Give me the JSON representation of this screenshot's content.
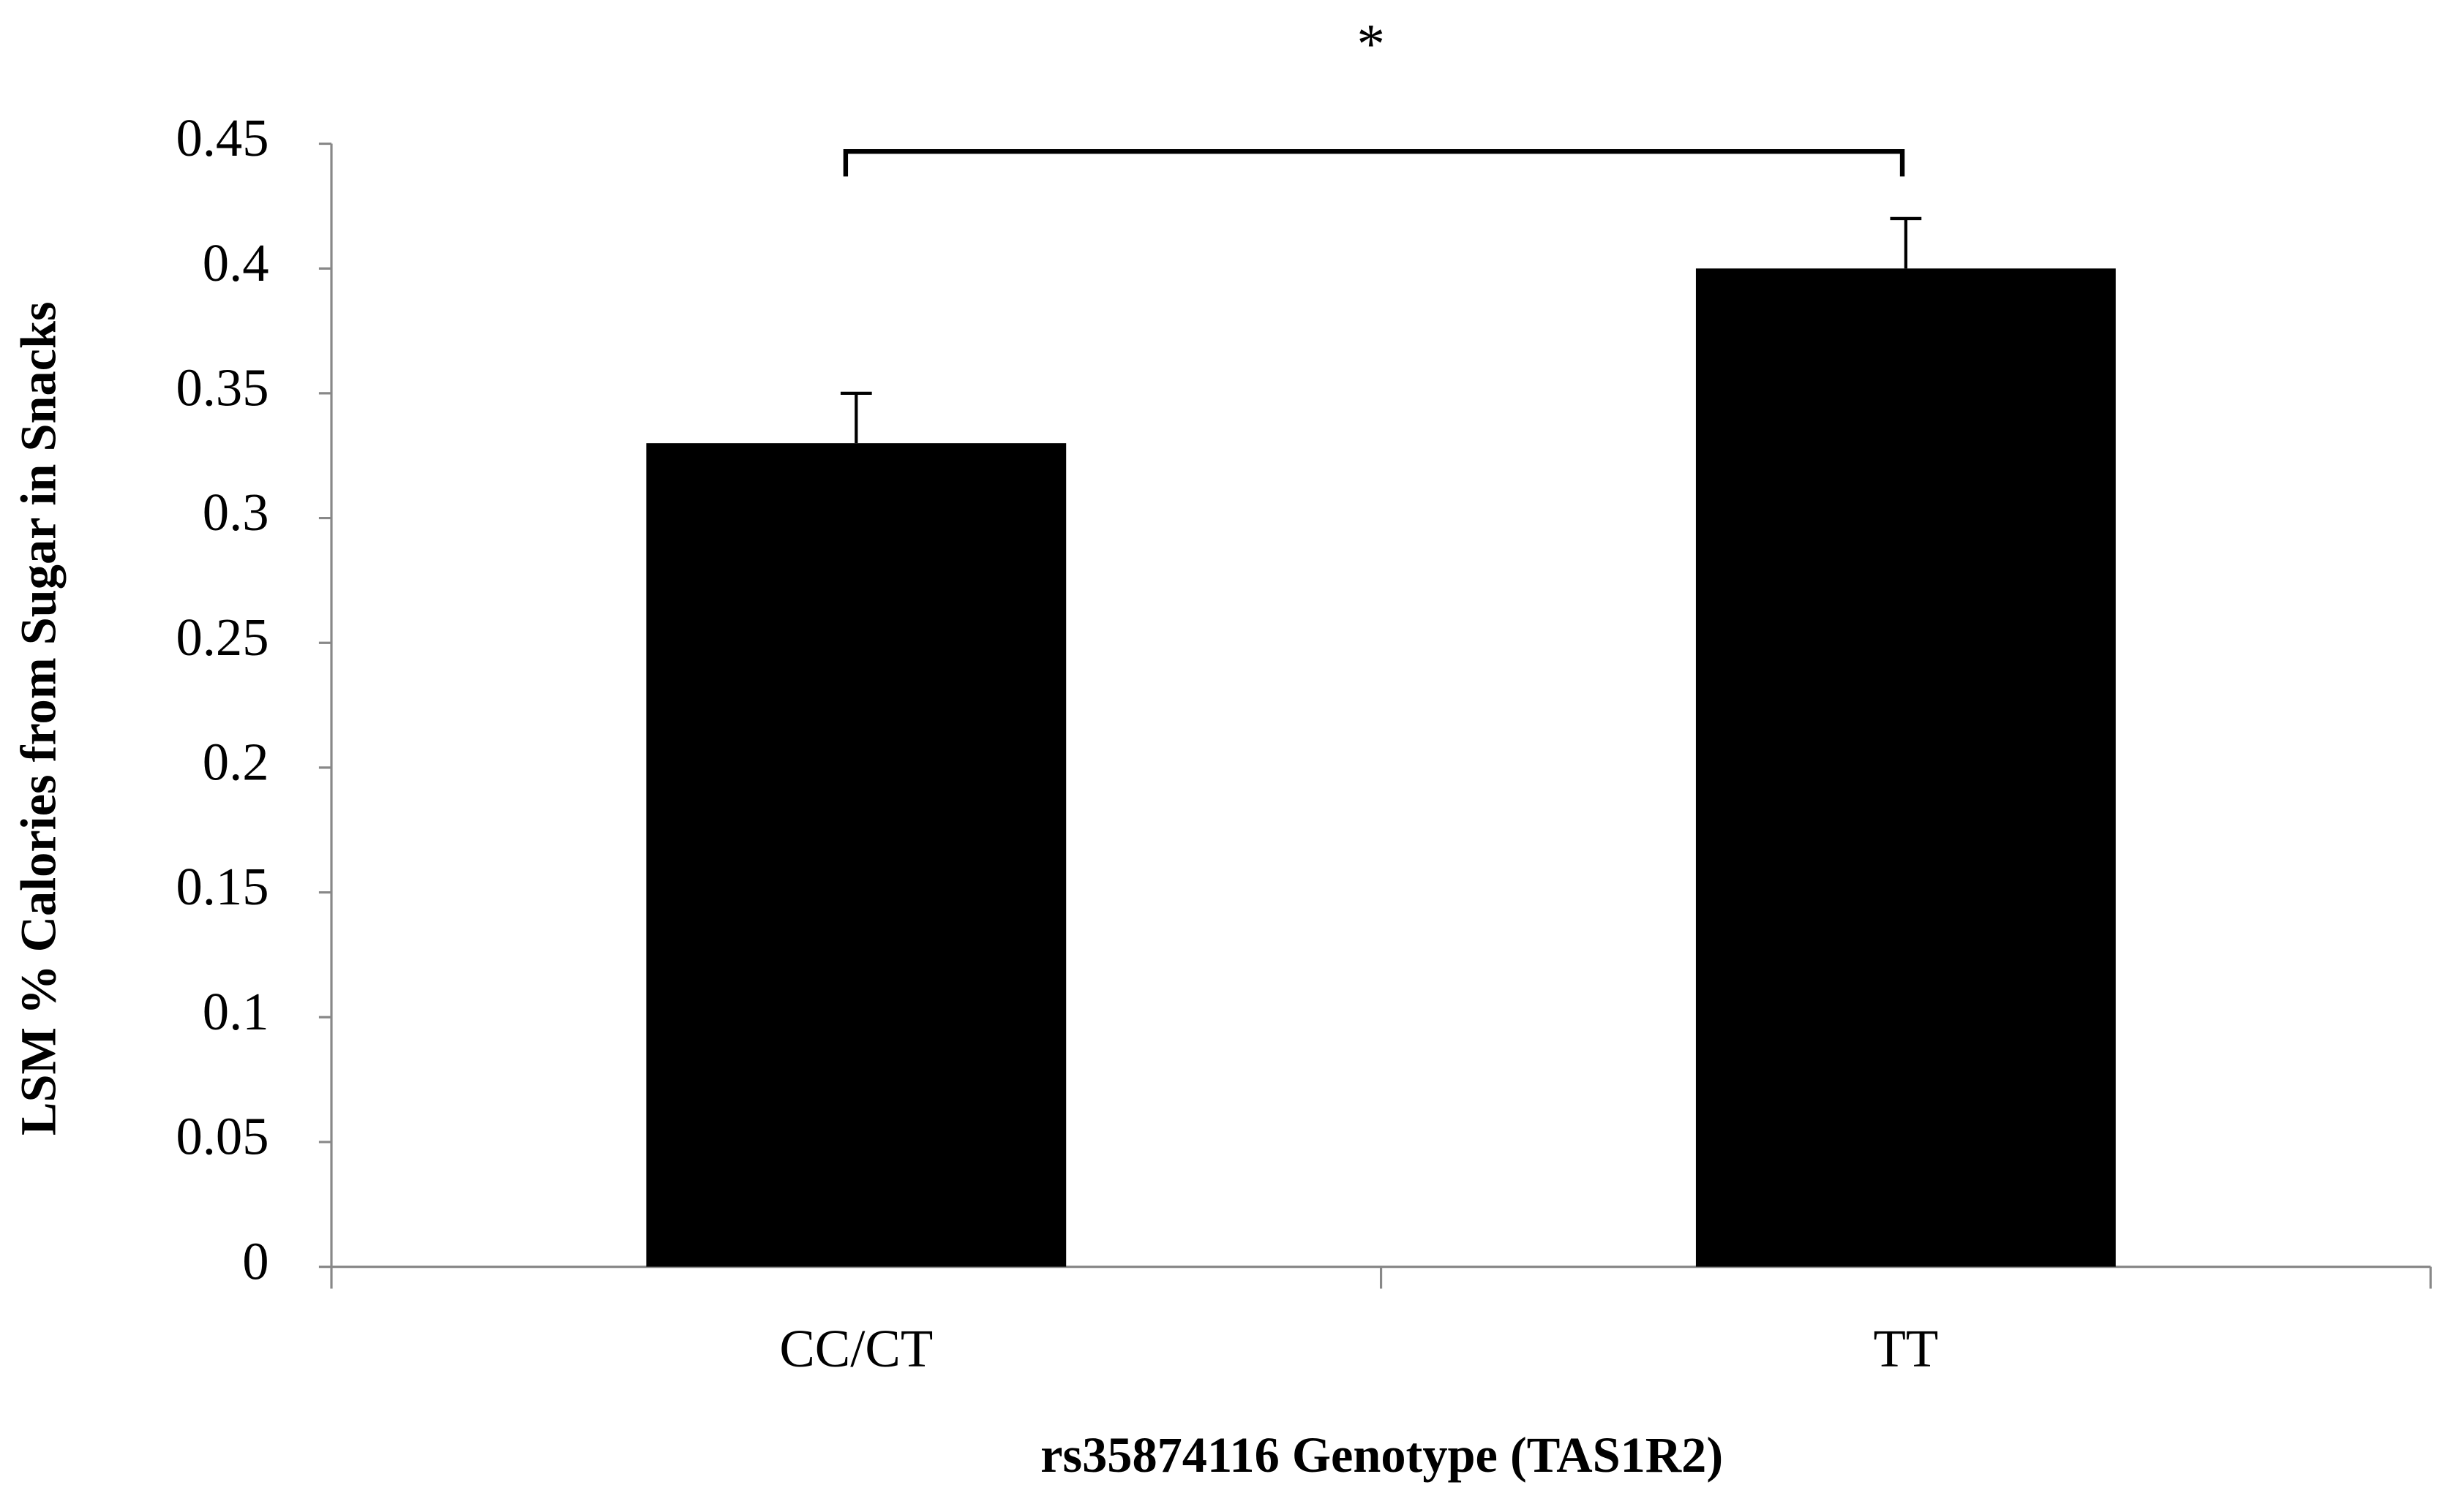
{
  "chart_data": {
    "type": "bar",
    "y_label": "LSM % Calories from Sugar in Snacks",
    "x_label": "rs35874116 Genotype (TAS1R2)",
    "annotation": "*",
    "categories": [
      "CC/CT",
      "TT"
    ],
    "values": [
      0.33,
      0.4
    ],
    "errors": [
      0.02,
      0.02
    ],
    "color": "#000000",
    "ylim": [
      0,
      0.45
    ],
    "yticks": [
      0,
      0.05,
      0.1,
      0.15,
      0.2,
      0.25,
      0.3,
      0.35,
      0.4,
      0.45
    ],
    "grid": false
  }
}
